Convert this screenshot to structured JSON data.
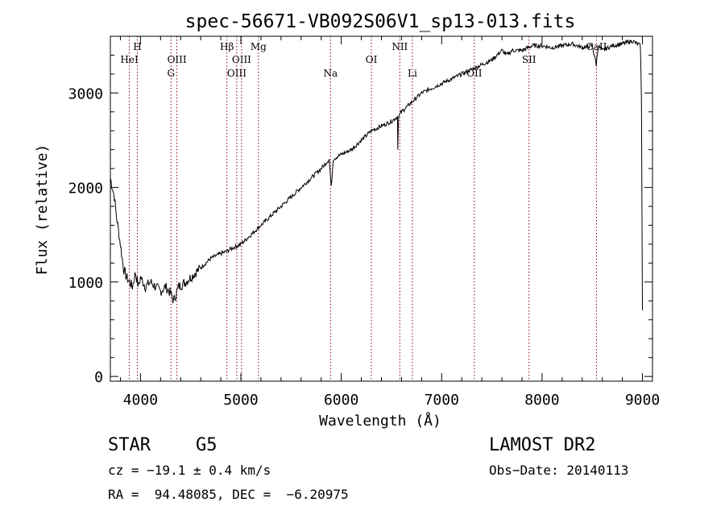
{
  "chart_data": {
    "type": "line",
    "title": "spec-56671-VB092S06V1_sp13-013.fits",
    "xlabel": "Wavelength (Å)",
    "ylabel": "Flux (relative)",
    "xlim": [
      3700,
      9100
    ],
    "ylim": [
      -50,
      3600
    ],
    "x_ticks": [
      4000,
      5000,
      6000,
      7000,
      8000,
      9000
    ],
    "y_ticks": [
      0,
      1000,
      2000,
      3000
    ],
    "grid": false,
    "legend": "none",
    "colors": {
      "spectrum": "#000000",
      "lines": "#8b0000"
    },
    "series": [
      {
        "x": [
          3700,
          3720,
          3740,
          3760,
          3780,
          3800,
          3830,
          3860,
          3890,
          3920,
          3950,
          3980,
          4000,
          4050,
          4100,
          4150,
          4200,
          4250,
          4300,
          4330,
          4380,
          4450,
          4500,
          4600,
          4700,
          4800,
          4850,
          4900,
          5000,
          5100,
          5200,
          5300,
          5400,
          5500,
          5600,
          5700,
          5800,
          5880,
          5900,
          5920,
          6000,
          6100,
          6200,
          6300,
          6400,
          6500,
          6560,
          6563,
          6570,
          6600,
          6700,
          6800,
          6900,
          7000,
          7100,
          7200,
          7300,
          7400,
          7500,
          7600,
          7650,
          7700,
          7800,
          7900,
          8000,
          8100,
          8200,
          8300,
          8400,
          8500,
          8540,
          8560,
          8600,
          8700,
          8800,
          8900,
          8980,
          8990,
          9000
        ],
        "values": [
          2100,
          2000,
          1900,
          1700,
          1550,
          1400,
          1150,
          1050,
          1000,
          950,
          1100,
          950,
          1050,
          950,
          1000,
          950,
          900,
          950,
          880,
          800,
          950,
          1000,
          1050,
          1150,
          1250,
          1300,
          1320,
          1350,
          1400,
          1500,
          1600,
          1700,
          1800,
          1900,
          2000,
          2100,
          2200,
          2300,
          2000,
          2300,
          2350,
          2400,
          2500,
          2600,
          2650,
          2700,
          2750,
          2400,
          2750,
          2800,
          2900,
          3000,
          3050,
          3100,
          3150,
          3200,
          3250,
          3300,
          3350,
          3450,
          3400,
          3450,
          3450,
          3500,
          3500,
          3480,
          3500,
          3520,
          3480,
          3500,
          3300,
          3500,
          3450,
          3500,
          3520,
          3550,
          3500,
          2900,
          700
        ]
      }
    ],
    "spectral_lines": [
      {
        "label": "HeI",
        "x": 3889,
        "row": 2
      },
      {
        "label": "H",
        "x": 3969,
        "row": 1
      },
      {
        "label": "OIII",
        "x": 4363,
        "row": 2
      },
      {
        "label": "G",
        "x": 4304,
        "row": 3
      },
      {
        "label": "Hβ",
        "x": 4861,
        "row": 1
      },
      {
        "label": "OIII",
        "x": 4959,
        "row": 3
      },
      {
        "label": "OIII",
        "x": 5007,
        "row": 2
      },
      {
        "label": "Mg",
        "x": 5175,
        "row": 1
      },
      {
        "label": "Na",
        "x": 5893,
        "row": 3
      },
      {
        "label": "OI",
        "x": 6300,
        "row": 2
      },
      {
        "label": "NII",
        "x": 6583,
        "row": 1
      },
      {
        "label": "Li",
        "x": 6708,
        "row": 3
      },
      {
        "label": "OII",
        "x": 7325,
        "row": 3
      },
      {
        "label": "SII",
        "x": 7870,
        "row": 2
      },
      {
        "label": "CaII",
        "x": 8542,
        "row": 1
      }
    ]
  },
  "info": {
    "object_class": "STAR",
    "subclass": "G5",
    "survey": "LAMOST DR2",
    "redshift_line": "cz = −19.1 ± 0.4 km/s",
    "obs_date_line": "Obs−Date: 20140113",
    "coords_line": "RA =  94.48085, DEC =  −6.20975"
  }
}
